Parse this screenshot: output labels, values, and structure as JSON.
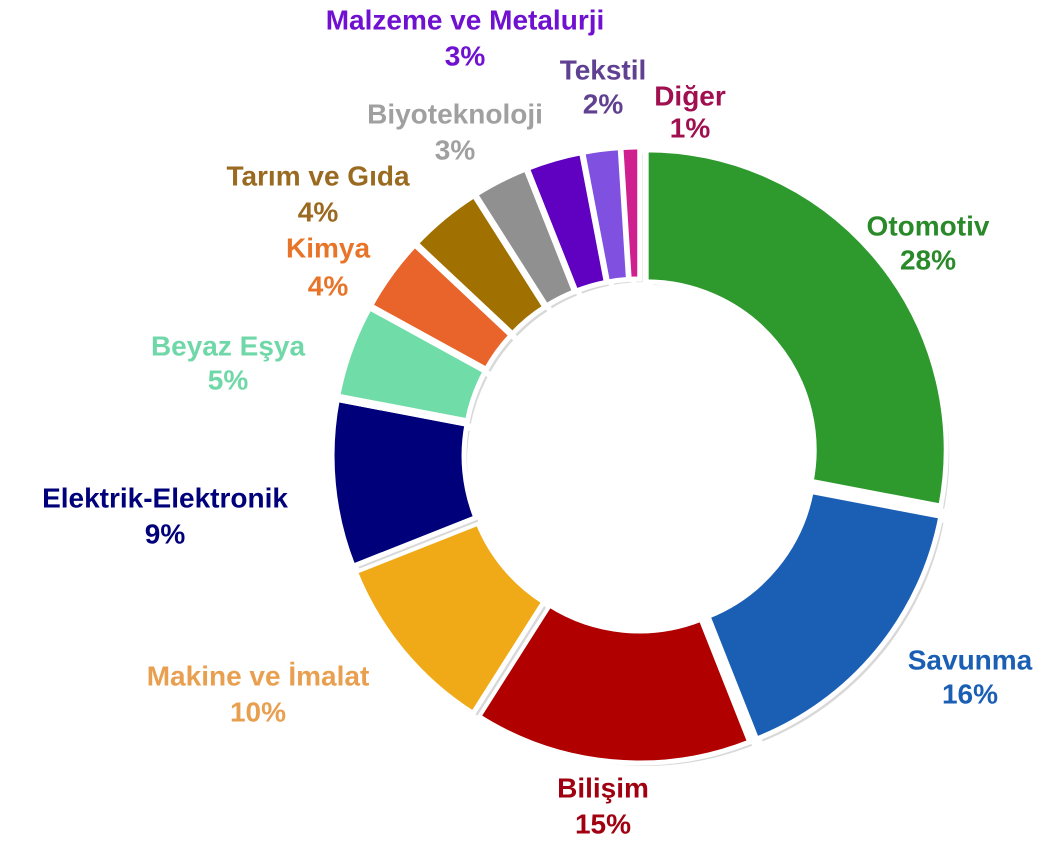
{
  "chart_data": {
    "type": "donut",
    "categories": [
      "Otomotiv",
      "Savunma",
      "Bilişim",
      "Makine ve İmalat",
      "Elektrik-Elektronik",
      "Beyaz Eşya",
      "Kimya",
      "Tarım ve Gıda",
      "Biyoteknoloji",
      "Malzeme ve Metalurji",
      "Tekstil",
      "Diğer"
    ],
    "values": [
      28,
      16,
      15,
      10,
      9,
      5,
      4,
      4,
      3,
      3,
      2,
      1
    ],
    "value_labels": [
      "28%",
      "16%",
      "15%",
      "10%",
      "9%",
      "5%",
      "4%",
      "4%",
      "3%",
      "3%",
      "2%",
      "1%"
    ],
    "colors": [
      "#2e9a2e",
      "#1a5fb4",
      "#b00000",
      "#f0aa18",
      "#00007a",
      "#70dca8",
      "#e8642a",
      "#a07000",
      "#909090",
      "#6000c0",
      "#8050e0",
      "#d02090"
    ],
    "label_colors": [
      "#2a8a2a",
      "#1a5fb4",
      "#a00010",
      "#e8a050",
      "#00007a",
      "#70d8a8",
      "#e8742a",
      "#9a6a20",
      "#a0a0a0",
      "#7010d0",
      "#604090",
      "#a01050"
    ]
  }
}
